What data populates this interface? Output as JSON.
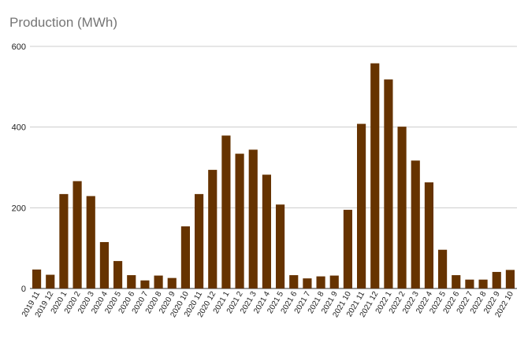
{
  "chart_data": {
    "type": "bar",
    "title": "Production (MWh)",
    "xlabel": "",
    "ylabel": "",
    "ylim": [
      0,
      600
    ],
    "yticks": [
      0,
      200,
      400,
      600
    ],
    "grid": true,
    "bar_color": "#663300",
    "categories": [
      "2019 11",
      "2019 12",
      "2020 1",
      "2020 2",
      "2020 3",
      "2020 4",
      "2020 5",
      "2020 6",
      "2020 7",
      "2020 8",
      "2020 9",
      "2020 10",
      "2020 11",
      "2020 12",
      "2021 1",
      "2021 2",
      "2021 3",
      "2021 4",
      "2021 5",
      "2021 6",
      "2021 7",
      "2021 8",
      "2021 9",
      "2021 10",
      "2021 11",
      "2021 12",
      "2022 1",
      "2022 2",
      "2022 3",
      "2022 4",
      "2022 5",
      "2022 6",
      "2022 7",
      "2022 8",
      "2022 9",
      "2022 10"
    ],
    "values": [
      47,
      34,
      234,
      266,
      229,
      115,
      68,
      33,
      20,
      32,
      26,
      154,
      234,
      294,
      379,
      334,
      344,
      282,
      208,
      33,
      25,
      30,
      32,
      195,
      408,
      558,
      518,
      401,
      317,
      263,
      96,
      33,
      22,
      22,
      41,
      46
    ]
  }
}
